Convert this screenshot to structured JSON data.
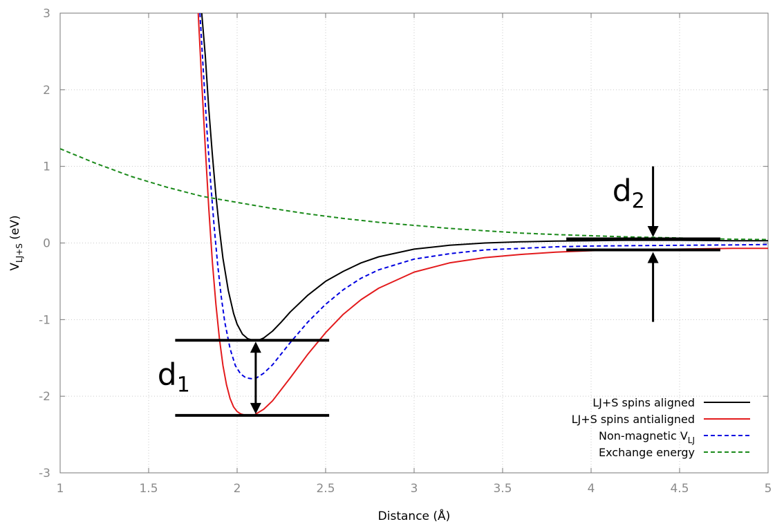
{
  "chart_data": {
    "type": "line",
    "title": "",
    "xlabel": "Distance (Å)",
    "ylabel": {
      "base": "V",
      "sub": "LJ+S",
      "rest": " (eV)"
    },
    "xlim": [
      1,
      5
    ],
    "ylim": [
      -3,
      3
    ],
    "xticks": [
      "1",
      "1.5",
      "2",
      "2.5",
      "3",
      "3.5",
      "4",
      "4.5",
      "5"
    ],
    "yticks": [
      "-3",
      "-2",
      "-1",
      "0",
      "1",
      "2",
      "3"
    ],
    "grid": true,
    "legend_position": "bottom-right",
    "series": [
      {
        "name": "LJ+S spins aligned",
        "legend": {
          "base": "LJ+S spins aligned",
          "sub": ""
        },
        "color": "#000000",
        "dash": "solid",
        "x": [
          1.8,
          1.82,
          1.84,
          1.86,
          1.88,
          1.9,
          1.92,
          1.95,
          1.98,
          2.0,
          2.03,
          2.06,
          2.09,
          2.12,
          2.15,
          2.2,
          2.25,
          2.3,
          2.4,
          2.5,
          2.6,
          2.7,
          2.8,
          3.0,
          3.2,
          3.4,
          3.6,
          3.8,
          4.0,
          4.2,
          4.5,
          4.8,
          5.0
        ],
        "y": [
          3.0,
          2.45,
          1.75,
          1.15,
          0.62,
          0.18,
          -0.2,
          -0.62,
          -0.92,
          -1.06,
          -1.19,
          -1.25,
          -1.27,
          -1.27,
          -1.24,
          -1.15,
          -1.03,
          -0.9,
          -0.68,
          -0.5,
          -0.37,
          -0.26,
          -0.18,
          -0.08,
          -0.03,
          0.0,
          0.015,
          0.025,
          0.03,
          0.035,
          0.035,
          0.03,
          0.03
        ]
      },
      {
        "name": "LJ+S spins antialigned",
        "legend": {
          "base": "LJ+S spins antialigned",
          "sub": ""
        },
        "color": "#e31a1c",
        "dash": "solid",
        "x": [
          1.78,
          1.8,
          1.82,
          1.84,
          1.86,
          1.88,
          1.9,
          1.92,
          1.94,
          1.96,
          1.98,
          2.0,
          2.02,
          2.05,
          2.08,
          2.1,
          2.15,
          2.2,
          2.3,
          2.4,
          2.5,
          2.6,
          2.7,
          2.8,
          3.0,
          3.2,
          3.4,
          3.6,
          3.8,
          4.0,
          4.2,
          4.5,
          4.8,
          5.0
        ],
        "y": [
          3.0,
          2.1,
          1.25,
          0.45,
          -0.25,
          -0.8,
          -1.25,
          -1.6,
          -1.85,
          -2.03,
          -2.14,
          -2.2,
          -2.23,
          -2.25,
          -2.25,
          -2.24,
          -2.17,
          -2.06,
          -1.76,
          -1.45,
          -1.17,
          -0.93,
          -0.74,
          -0.59,
          -0.38,
          -0.26,
          -0.19,
          -0.15,
          -0.12,
          -0.1,
          -0.09,
          -0.08,
          -0.07,
          -0.07
        ]
      },
      {
        "name": "Non-magnetic V_LJ",
        "legend": {
          "base": "Non-magnetic V",
          "sub": "LJ"
        },
        "color": "#0000e0",
        "dash": "dashed",
        "x": [
          1.79,
          1.81,
          1.83,
          1.85,
          1.87,
          1.89,
          1.91,
          1.93,
          1.96,
          1.99,
          2.02,
          2.05,
          2.08,
          2.11,
          2.15,
          2.2,
          2.3,
          2.4,
          2.5,
          2.6,
          2.7,
          2.8,
          3.0,
          3.2,
          3.4,
          3.6,
          3.8,
          4.0,
          4.2,
          4.5,
          4.8,
          5.0
        ],
        "y": [
          3.0,
          2.2,
          1.45,
          0.8,
          0.22,
          -0.28,
          -0.7,
          -1.03,
          -1.38,
          -1.6,
          -1.71,
          -1.76,
          -1.77,
          -1.76,
          -1.7,
          -1.59,
          -1.3,
          -1.03,
          -0.8,
          -0.61,
          -0.46,
          -0.35,
          -0.21,
          -0.14,
          -0.09,
          -0.07,
          -0.05,
          -0.04,
          -0.035,
          -0.03,
          -0.025,
          -0.02
        ]
      },
      {
        "name": "Exchange energy",
        "legend": {
          "base": "Exchange energy",
          "sub": ""
        },
        "color": "#1a8a1a",
        "dash": "dashed",
        "x": [
          1.0,
          1.2,
          1.4,
          1.6,
          1.8,
          2.0,
          2.2,
          2.4,
          2.6,
          2.8,
          3.0,
          3.2,
          3.4,
          3.6,
          3.8,
          4.0,
          4.2,
          4.4,
          4.6,
          4.8,
          5.0
        ],
        "y": [
          1.23,
          1.04,
          0.87,
          0.73,
          0.61,
          0.53,
          0.45,
          0.38,
          0.32,
          0.27,
          0.23,
          0.19,
          0.16,
          0.13,
          0.11,
          0.095,
          0.08,
          0.07,
          0.06,
          0.05,
          0.045
        ]
      }
    ],
    "annotations": {
      "d1": {
        "label_base": "d",
        "label_sub": "1",
        "x_line": [
          1.65,
          2.52
        ],
        "y_top": -1.27,
        "y_bottom": -2.25,
        "arrow_x": 2.105,
        "label_pos": [
          1.55,
          -1.85
        ]
      },
      "d2": {
        "label_base": "d",
        "label_sub": "2",
        "x_line": [
          3.86,
          4.73
        ],
        "y_top": 0.05,
        "y_bottom": -0.09,
        "arrow_x": 4.35,
        "arrow_from_top": 1.0,
        "arrow_from_bottom": -1.03,
        "label_pos": [
          4.12,
          0.55
        ]
      }
    }
  }
}
